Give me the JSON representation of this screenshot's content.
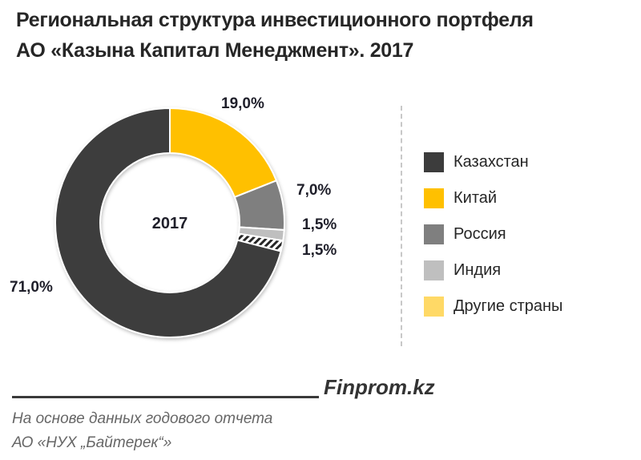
{
  "title": {
    "line1": "Региональная структура инвестиционного портфеля",
    "line2": "АО «Казына Капитал Менеджмент». 2017"
  },
  "chart_data": {
    "type": "pie",
    "subtype": "donut",
    "title": "Региональная структура инвестиционного портфеля АО «Казына Капитал Менеджмент». 2017",
    "center_label": "2017",
    "categories": [
      "Казахстан",
      "Китай",
      "Россия",
      "Индия",
      "Другие страны"
    ],
    "values": [
      71.0,
      19.0,
      7.0,
      1.5,
      1.5
    ],
    "value_labels": [
      "71,0%",
      "19,0%",
      "7,0%",
      "1,5%",
      "1,5%"
    ],
    "colors": [
      "#3c3c3c",
      "#ffc000",
      "#7f7f7f",
      "#bfbfbf",
      "#ffd966"
    ],
    "unit": "%",
    "legend_position": "right"
  },
  "legend": {
    "items": [
      {
        "label": "Казахстан",
        "color": "#3c3c3c"
      },
      {
        "label": "Китай",
        "color": "#ffc000"
      },
      {
        "label": "Россия",
        "color": "#7f7f7f"
      },
      {
        "label": "Индия",
        "color": "#bfbfbf"
      },
      {
        "label": "Другие страны",
        "color": "#ffd966"
      }
    ]
  },
  "footer": {
    "brand": "Finprom.kz",
    "source_line1": "На основе данных годового отчета",
    "source_line2": "АО «НУХ „Байтерек“»"
  }
}
